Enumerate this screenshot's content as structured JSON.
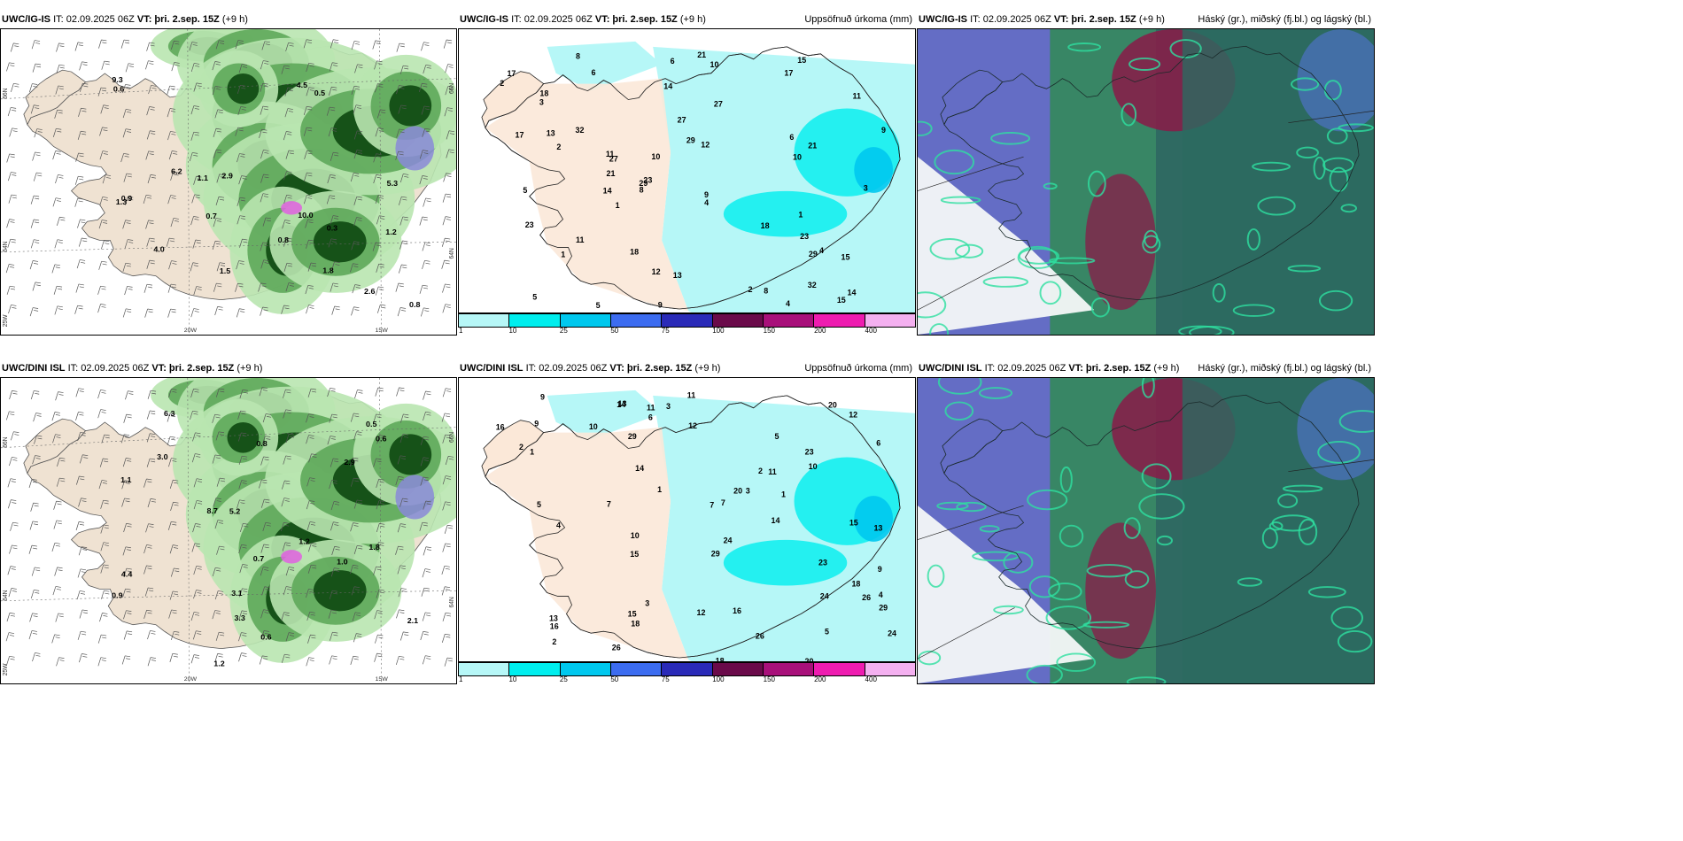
{
  "panels": [
    {
      "id": "p1",
      "model": "UWC/IG-IS",
      "it": "IT: 02.09.2025 06Z",
      "vt": "VT: þri. 2.sep. 15Z",
      "lead": "(+9 h)",
      "right": "",
      "kind": "snow"
    },
    {
      "id": "p2",
      "model": "UWC/IG-IS",
      "it": "IT: 02.09.2025 06Z",
      "vt": "VT: þri. 2.sep. 15Z",
      "lead": "(+9 h)",
      "right": "Uppsöfnuð úrkoma (mm)",
      "kind": "precip"
    },
    {
      "id": "p3",
      "model": "UWC/IG-IS",
      "it": "IT: 02.09.2025 06Z",
      "vt": "VT: þri. 2.sep. 15Z",
      "lead": "(+9 h)",
      "right": "Háský (gr.), miðský (fj.bl.) og lágský (bl.)",
      "kind": "cloud"
    },
    {
      "id": "p4",
      "model": "UWC/DINI ISL",
      "it": "IT: 02.09.2025 06Z",
      "vt": "VT: þri. 2.sep. 15Z",
      "lead": "(+9 h)",
      "right": "",
      "kind": "snow"
    },
    {
      "id": "p5",
      "model": "UWC/DINI ISL",
      "it": "IT: 02.09.2025 06Z",
      "vt": "VT: þri. 2.sep. 15Z",
      "lead": "(+9 h)",
      "right": "Uppsöfnuð úrkoma (mm)",
      "kind": "precip"
    },
    {
      "id": "p6",
      "model": "UWC/DINI ISL",
      "it": "IT: 02.09.2025 06Z",
      "vt": "VT: þri. 2.sep. 15Z",
      "lead": "(+9 h)",
      "right": "Háský (gr.), miðský (fj.bl.) og lágský (bl.)",
      "kind": "cloud"
    }
  ],
  "axis_labels": {
    "lon20": "20W",
    "lon15": "15W",
    "lat66": "66N",
    "lat64": "64N",
    "lon25": "25W"
  },
  "colorbar": {
    "ticks": [
      "1",
      "10",
      "25",
      "50",
      "75",
      "100",
      "150",
      "200",
      "400"
    ],
    "colors": [
      "#b6f7f7",
      "#00eeee",
      "#00c8ee",
      "#3c6cf0",
      "#2a2ab8",
      "#6a0a4a",
      "#a8107a",
      "#ee1cb0",
      "#f4b0f0"
    ]
  },
  "snow_labels_top": [
    "0.5",
    "0.6",
    "0.9",
    "1.1",
    "1.3",
    "2.6",
    "2.9",
    "4.5",
    "5.3",
    "6.2",
    "9.3",
    "10.0",
    "4.0",
    "1.8",
    "0.7",
    "0.8",
    "1.2",
    "1.5",
    "0.3",
    "0.8"
  ],
  "snow_labels_bottom": [
    "0.5",
    "0.6",
    "0.8",
    "1.1",
    "1.2",
    "2.1",
    "3.3",
    "4.4",
    "5.2",
    "6.3",
    "8.7",
    "3.0",
    "2.9",
    "0.7",
    "1.2",
    "3.1",
    "1.8",
    "0.9",
    "0.6",
    "1.0"
  ],
  "precip_labels_top": [
    "1",
    "2",
    "4",
    "5",
    "6",
    "8",
    "9",
    "10",
    "11",
    "12",
    "14",
    "15",
    "17",
    "18",
    "21",
    "23",
    "27",
    "29",
    "32",
    "13",
    "3"
  ],
  "precip_labels_bottom": [
    "1",
    "2",
    "3",
    "5",
    "7",
    "9",
    "10",
    "11",
    "12",
    "13",
    "14",
    "15",
    "16",
    "18",
    "20",
    "24",
    "26",
    "29",
    "23",
    "6",
    "4"
  ]
}
